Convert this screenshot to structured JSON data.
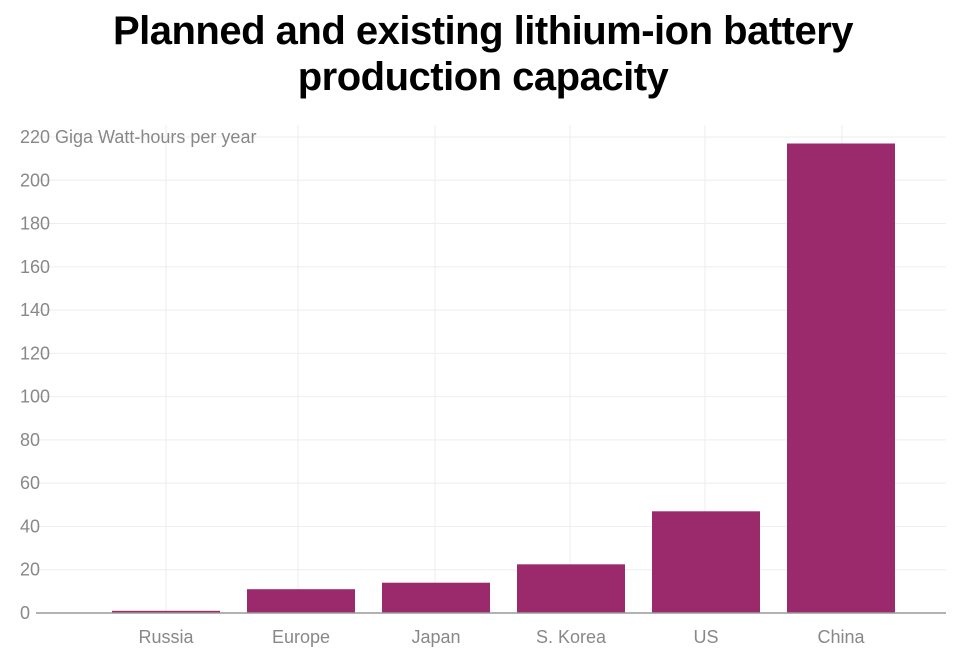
{
  "chart_data": {
    "type": "bar",
    "title_lines": [
      "Planned and existing lithium-ion battery",
      "production capacity"
    ],
    "ylabel": "Giga Watt-hours per year",
    "ylim": [
      0,
      220
    ],
    "yticks": [
      0,
      20,
      40,
      60,
      80,
      100,
      120,
      140,
      160,
      180,
      200,
      220
    ],
    "top_tick_label": "220 Giga Watt-hours per year",
    "categories": [
      "Russia",
      "Europe",
      "Japan",
      "S. Korea",
      "US",
      "China"
    ],
    "values": [
      1,
      11,
      14,
      22.5,
      47,
      217
    ],
    "bar_color": "#9b2a6c",
    "grid_color": "#eeeeee",
    "axis_color": "#999999",
    "grid": true
  }
}
